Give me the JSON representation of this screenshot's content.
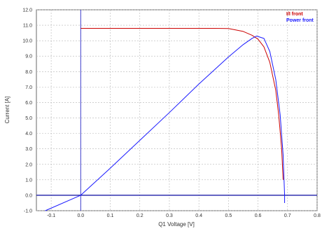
{
  "chart_data": {
    "type": "line",
    "xlabel": "Q1 Voltage [V]",
    "ylabel": "Current [A]",
    "xlim": [
      -0.15,
      0.8
    ],
    "ylim": [
      -1.0,
      12.0
    ],
    "x_ticks": [
      -0.1,
      0.0,
      0.1,
      0.2,
      0.3,
      0.4,
      0.5,
      0.6,
      0.7,
      0.8
    ],
    "x_tick_labels": [
      "-0.1",
      "0.0",
      "0.1",
      "0.2",
      "0.3",
      "0.4",
      "0.5",
      "0.6",
      "0.7",
      "0.8"
    ],
    "y_ticks": [
      -1,
      0,
      1,
      2,
      3,
      4,
      5,
      6,
      7,
      8,
      9,
      10,
      11,
      12
    ],
    "y_tick_labels": [
      "-1.0",
      "0.0",
      "1.0",
      "2.0",
      "3.0",
      "4.0",
      "5.0",
      "6.0",
      "7.0",
      "8.0",
      "9.0",
      "10.0",
      "11.0",
      "12.0"
    ],
    "grid": true,
    "legend_position": "top-right",
    "reference_lines": {
      "x": 0.0,
      "y": 0.0
    },
    "series": [
      {
        "name": "I/I front",
        "color": "#cc0000",
        "points": [
          [
            0.0,
            10.8
          ],
          [
            0.45,
            10.8
          ],
          [
            0.5,
            10.79
          ],
          [
            0.55,
            10.6
          ],
          [
            0.58,
            10.35
          ],
          [
            0.6,
            10.1
          ],
          [
            0.62,
            9.6
          ],
          [
            0.64,
            8.6
          ],
          [
            0.66,
            6.8
          ],
          [
            0.67,
            5.2
          ],
          [
            0.68,
            3.0
          ],
          [
            0.685,
            1.0
          ]
        ]
      },
      {
        "name": "Power front",
        "color": "#1a1aff",
        "points": [
          [
            -0.12,
            -1.0
          ],
          [
            0.0,
            0.0
          ],
          [
            0.1,
            1.75
          ],
          [
            0.2,
            3.55
          ],
          [
            0.3,
            5.35
          ],
          [
            0.4,
            7.2
          ],
          [
            0.5,
            8.95
          ],
          [
            0.55,
            9.75
          ],
          [
            0.58,
            10.15
          ],
          [
            0.595,
            10.3
          ],
          [
            0.62,
            10.15
          ],
          [
            0.64,
            9.3
          ],
          [
            0.66,
            7.5
          ],
          [
            0.675,
            5.2
          ],
          [
            0.685,
            2.6
          ],
          [
            0.69,
            0.0
          ],
          [
            0.69,
            -0.5
          ]
        ]
      }
    ]
  }
}
